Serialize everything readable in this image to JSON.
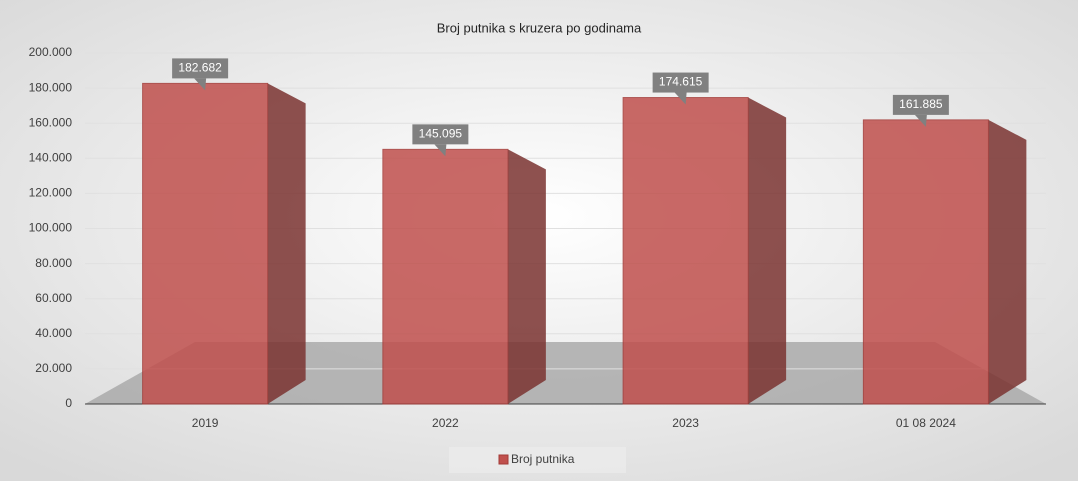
{
  "chart_data": {
    "type": "bar",
    "title": "Broj putnika s kruzera po godinama",
    "categories": [
      "2019",
      "2022",
      "2023",
      "01 08 2024"
    ],
    "series": [
      {
        "name": "Broj putnika",
        "color": "#c0504d",
        "values": [
          182682,
          145095,
          174615,
          161885
        ],
        "value_labels": [
          "182.682",
          "145.095",
          "174.615",
          "161.885"
        ]
      }
    ],
    "ylim": [
      0,
      200000
    ],
    "yticks": [
      0,
      {
        "value": 20000,
        "label": "20.000"
      },
      {
        "value": 40000,
        "label": "40.000"
      },
      {
        "value": 60000,
        "label": "60.000"
      },
      {
        "value": 80000,
        "label": "80.000"
      },
      {
        "value": 100000,
        "label": "100.000"
      },
      {
        "value": 120000,
        "label": "120.000"
      },
      {
        "value": 140000,
        "label": "140.000"
      },
      {
        "value": 160000,
        "label": "160.000"
      },
      {
        "value": 180000,
        "label": "180.000"
      },
      {
        "value": 200000,
        "label": "200.000"
      }
    ],
    "grid": true,
    "legend": "bottom"
  }
}
